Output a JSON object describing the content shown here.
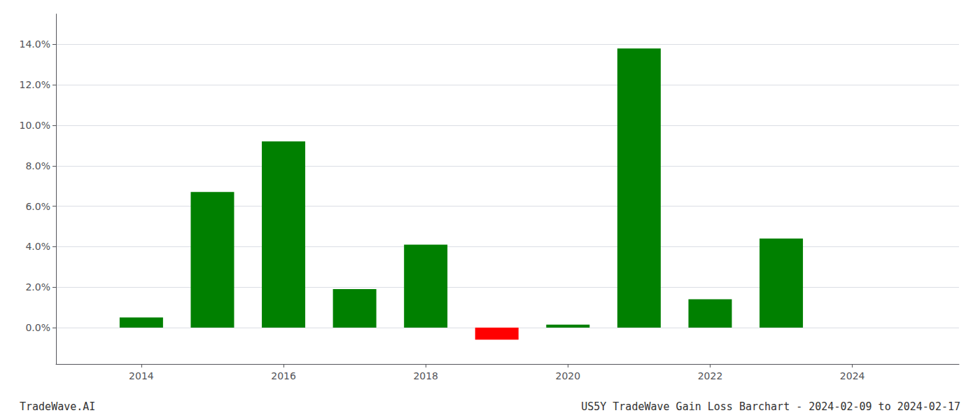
{
  "chart_data": {
    "type": "bar",
    "x": [
      2014,
      2015,
      2016,
      2017,
      2018,
      2019,
      2020,
      2021,
      2022,
      2023
    ],
    "values": [
      0.005,
      0.067,
      0.092,
      0.019,
      0.041,
      -0.006,
      0.0015,
      0.138,
      0.014,
      0.044
    ],
    "colors": [
      "#008000",
      "#008000",
      "#008000",
      "#008000",
      "#008000",
      "#ff0000",
      "#008000",
      "#008000",
      "#008000",
      "#008000"
    ],
    "xlim": [
      2012.8,
      2025.5
    ],
    "xticks": [
      2014,
      2016,
      2018,
      2020,
      2022,
      2024
    ],
    "ylim": [
      -0.018,
      0.155
    ],
    "yticks": [
      {
        "value": 0.0,
        "label": "0.0%"
      },
      {
        "value": 0.02,
        "label": "2.0%"
      },
      {
        "value": 0.04,
        "label": "4.0%"
      },
      {
        "value": 0.06,
        "label": "6.0%"
      },
      {
        "value": 0.08,
        "label": "8.0%"
      },
      {
        "value": 0.1,
        "label": "10.0%"
      },
      {
        "value": 0.12,
        "label": "12.0%"
      },
      {
        "value": 0.14,
        "label": "14.0%"
      }
    ],
    "grid": true,
    "annotations": [
      "TradeWave.AI",
      "US5Y TradeWave Gain Loss Barchart - 2024-02-09 to 2024-02-17"
    ]
  }
}
